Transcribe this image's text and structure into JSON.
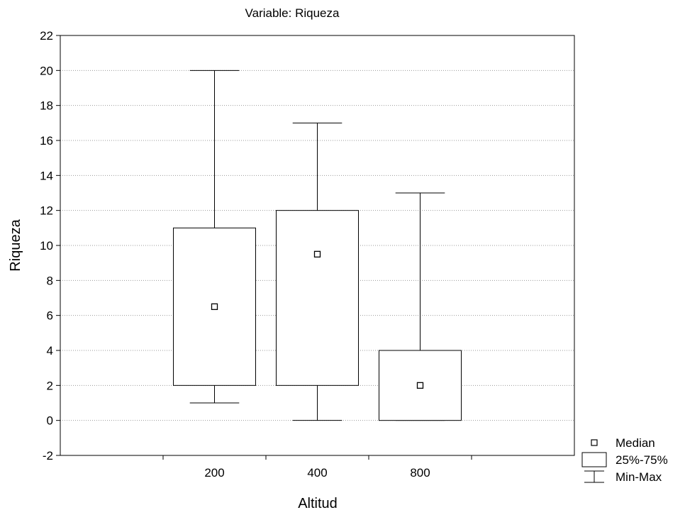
{
  "chart_data": {
    "type": "boxplot",
    "subtitle": "Variable: Riqueza",
    "xlabel": "Altitud",
    "ylabel": "Riqueza",
    "categories": [
      "200",
      "400",
      "800"
    ],
    "ylim": [
      -2,
      22
    ],
    "yticks": [
      "-2",
      "0",
      "2",
      "4",
      "6",
      "8",
      "10",
      "12",
      "14",
      "16",
      "18",
      "20",
      "22"
    ],
    "grid": true,
    "legend_position": "bottom-right",
    "boxes": [
      {
        "category": "200",
        "min": 1,
        "q1": 2,
        "median": 6.5,
        "q3": 11,
        "max": 20
      },
      {
        "category": "400",
        "min": 0,
        "q1": 2,
        "median": 9.5,
        "q3": 12,
        "max": 17
      },
      {
        "category": "800",
        "min": 0,
        "q1": 0,
        "median": 2,
        "q3": 4,
        "max": 13
      }
    ],
    "legend": [
      {
        "symbol": "median-marker",
        "label": "Median"
      },
      {
        "symbol": "box",
        "label": "25%-75%"
      },
      {
        "symbol": "whisker",
        "label": "Min-Max"
      }
    ]
  }
}
